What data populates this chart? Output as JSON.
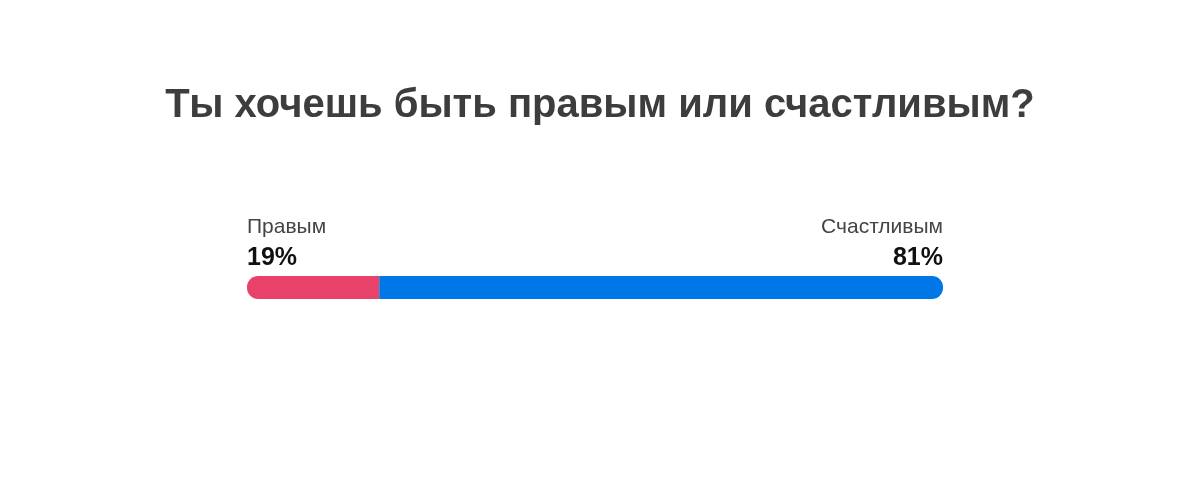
{
  "chart_data": {
    "type": "bar",
    "title": "Ты хочешь быть правым или счастливым?",
    "orientation": "horizontal",
    "stacked": true,
    "categories": [
      null
    ],
    "tick_labels": false,
    "grid": false,
    "legend": false,
    "series": [
      {
        "name": "Правым",
        "color": "#e8416a",
        "values": [
          19
        ],
        "value_labels": [
          "19%"
        ]
      },
      {
        "name": "Счастливым",
        "color": "#0077e6",
        "values": [
          81
        ],
        "value_labels": [
          "81%"
        ]
      }
    ]
  }
}
